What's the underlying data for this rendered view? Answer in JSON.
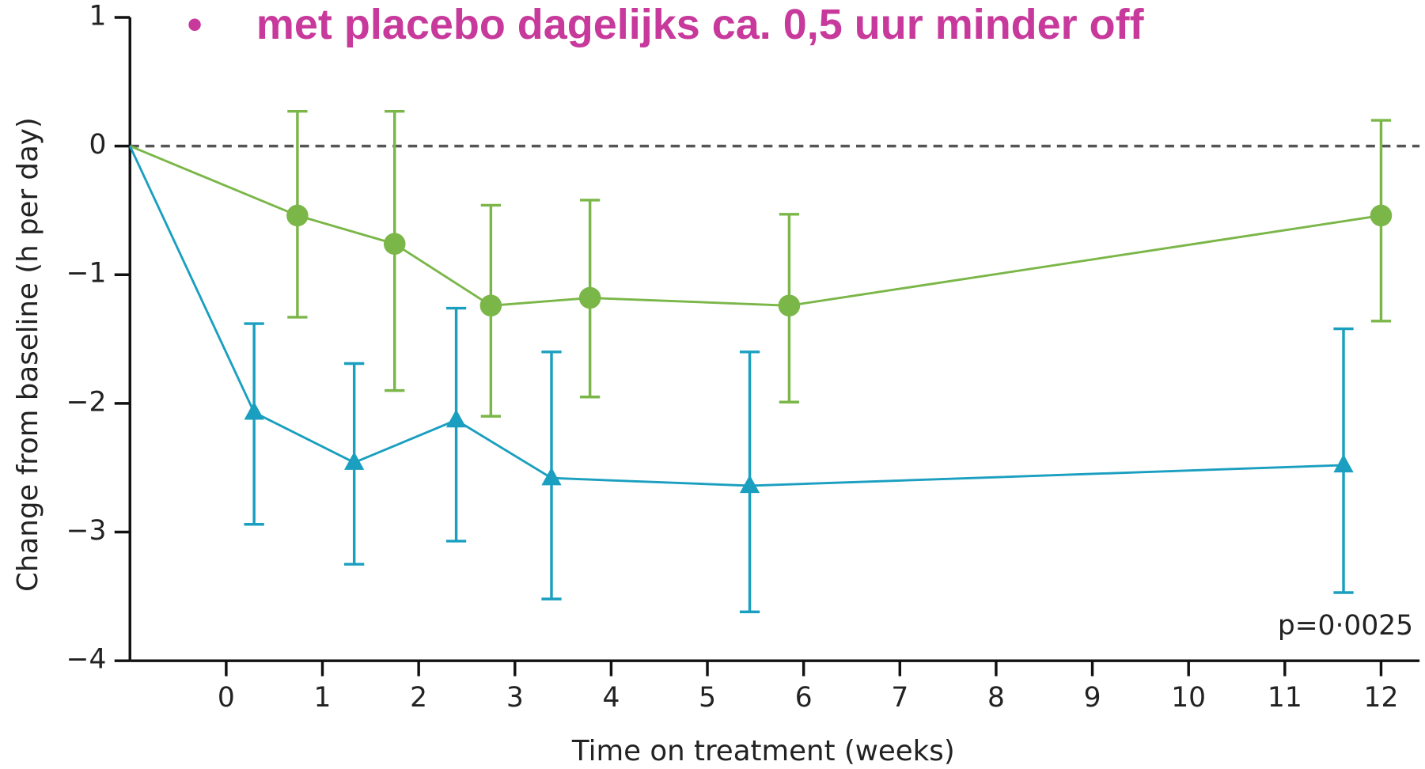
{
  "chart_data": {
    "type": "line",
    "title": "met placebo dagelijks ca. 0,5 uur minder off",
    "xlabel": "Time on treatment (weeks)",
    "ylabel": "Change from baseline (h per day)",
    "annotation": "p=0·0025",
    "xlim": [
      -1,
      12.4
    ],
    "ylim": [
      -4,
      1
    ],
    "xticks": [
      0,
      1,
      2,
      3,
      4,
      5,
      6,
      7,
      8,
      9,
      10,
      11,
      12
    ],
    "yticks": [
      {
        "value": -4,
        "label": "−4"
      },
      {
        "value": -3,
        "label": "−3"
      },
      {
        "value": -2,
        "label": "−2"
      },
      {
        "value": -1,
        "label": "−1"
      },
      0,
      1
    ],
    "reference_line": 0,
    "series": [
      {
        "color": "#7ab648",
        "marker": "circle",
        "x": [
          -1,
          0.74,
          1.75,
          2.75,
          3.78,
          5.85,
          12
        ],
        "values": [
          0,
          -0.54,
          -0.76,
          -1.24,
          -1.18,
          -1.24,
          -0.54
        ],
        "upper": [
          null,
          0.27,
          0.27,
          -0.46,
          -0.42,
          -0.53,
          0.2
        ],
        "lower": [
          null,
          -1.33,
          -1.9,
          -2.1,
          -1.95,
          -1.99,
          -1.36
        ]
      },
      {
        "color": "#1a9fc0",
        "marker": "triangle",
        "x": [
          -1,
          0.29,
          1.33,
          2.39,
          3.38,
          5.44,
          11.61
        ],
        "values": [
          0,
          -2.07,
          -2.46,
          -2.13,
          -2.58,
          -2.64,
          -2.48
        ],
        "upper": [
          null,
          -1.38,
          -1.69,
          -1.26,
          -1.6,
          -1.6,
          -1.42
        ],
        "lower": [
          null,
          -2.94,
          -3.25,
          -3.07,
          -3.52,
          -3.62,
          -3.47
        ]
      }
    ]
  }
}
